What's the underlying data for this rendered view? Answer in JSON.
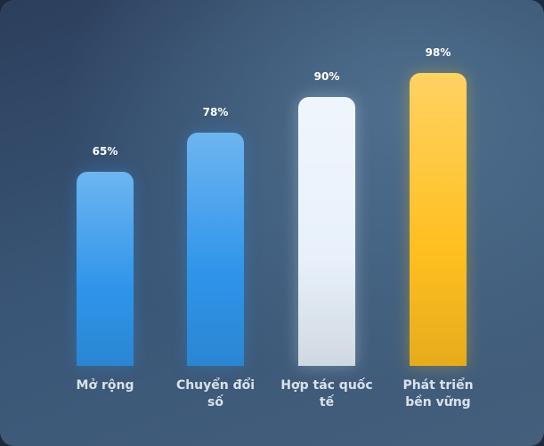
{
  "chart_data": {
    "type": "bar",
    "categories": [
      "Mở rộng",
      "Chuyển đổi số",
      "Hợp tác quốc tế",
      "Phát triển bền vững"
    ],
    "values": [
      65,
      78,
      90,
      98
    ],
    "value_labels": [
      "65%",
      "78%",
      "90%",
      "98%"
    ],
    "colors": [
      "#2f95ea",
      "#2f95ea",
      "#e8f1fb",
      "#ffbf1f"
    ]
  }
}
